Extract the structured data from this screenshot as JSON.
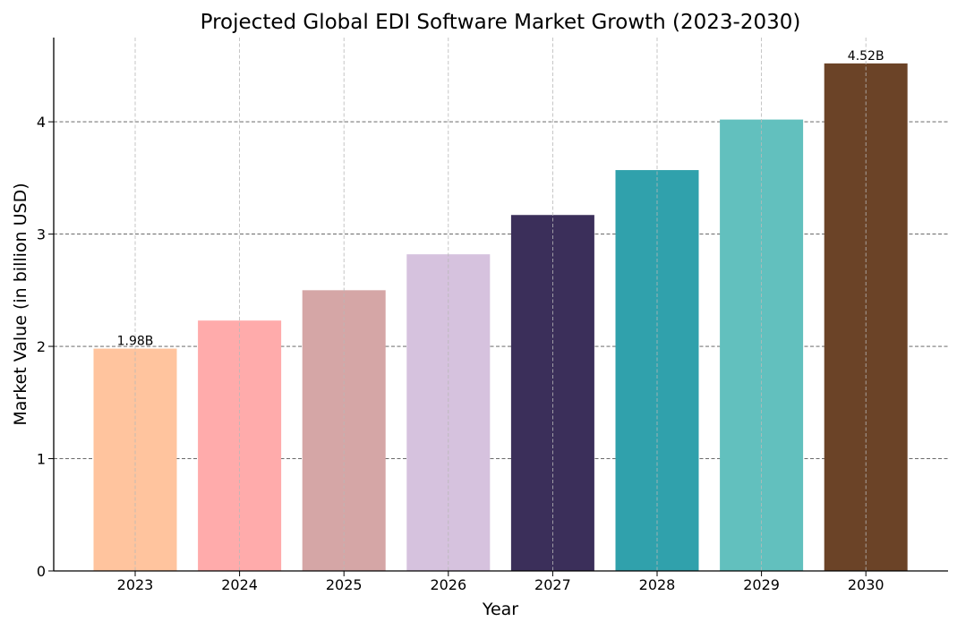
{
  "chart_data": {
    "type": "bar",
    "title": "Projected Global EDI Software Market Growth (2023-2030)",
    "xlabel": "Year",
    "ylabel": "Market Value (in billion USD)",
    "categories": [
      "2023",
      "2024",
      "2025",
      "2026",
      "2027",
      "2028",
      "2029",
      "2030"
    ],
    "values": [
      1.98,
      2.23,
      2.5,
      2.82,
      3.17,
      3.57,
      4.02,
      4.52
    ],
    "colors": [
      "#FFC49E",
      "#FFABAB",
      "#D5A6A6",
      "#D6C2DE",
      "#3B2F5A",
      "#30A1AC",
      "#62C0BE",
      "#6B4327"
    ],
    "data_labels": [
      {
        "index": 0,
        "text": "1.98B"
      },
      {
        "index": 7,
        "text": "4.52B"
      }
    ],
    "ylim": [
      0,
      4.75
    ],
    "yticks": [
      "0",
      "1",
      "2",
      "3",
      "4"
    ],
    "grid": true,
    "legend": "none"
  }
}
